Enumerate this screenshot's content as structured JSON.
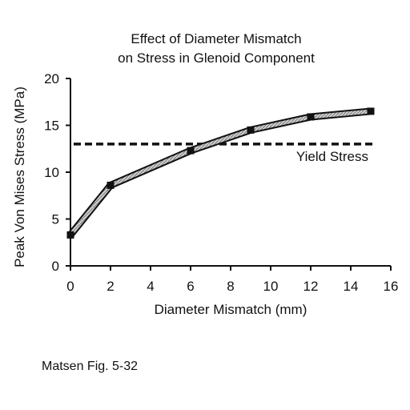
{
  "chart_data": {
    "type": "line",
    "title": [
      "Effect of Diameter Mismatch",
      "on Stress in Glenoid Component"
    ],
    "xlabel": "Diameter Mismatch (mm)",
    "ylabel": "Peak Von Mises Stress (MPa)",
    "xlim": [
      0,
      16
    ],
    "ylim": [
      0,
      20
    ],
    "xticks": [
      0,
      2,
      4,
      6,
      8,
      10,
      12,
      14,
      16
    ],
    "yticks": [
      0,
      5,
      10,
      15,
      20
    ],
    "grid": false,
    "series": [
      {
        "x": [
          0,
          2,
          6,
          9,
          12,
          15
        ],
        "y": [
          3.3,
          8.6,
          12.3,
          14.5,
          15.9,
          16.5
        ]
      }
    ],
    "reference_lines": [
      {
        "label": "Yield Stress",
        "y": 13.0,
        "style": "dashed"
      }
    ]
  },
  "caption": "Matsen Fig. 5-32"
}
